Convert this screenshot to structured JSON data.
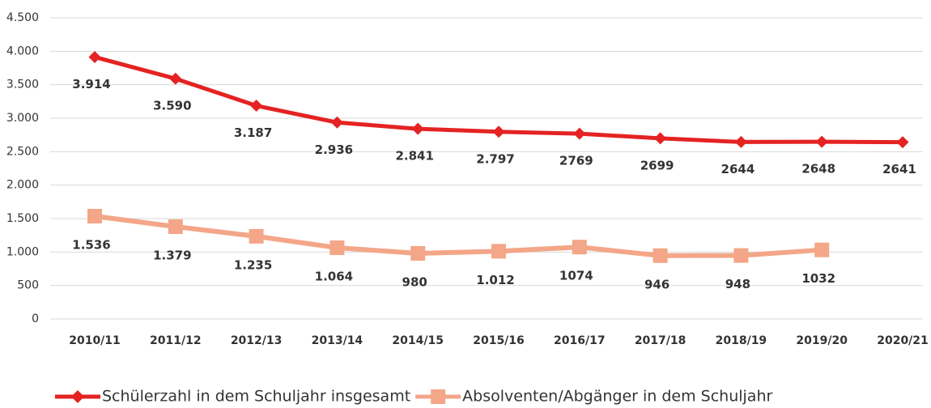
{
  "chart_data": {
    "type": "line",
    "categories": [
      "2010/11",
      "2011/12",
      "2012/13",
      "2013/14",
      "2014/15",
      "2015/16",
      "2016/17",
      "2017/18",
      "2018/19",
      "2019/20",
      "2020/21"
    ],
    "series": [
      {
        "name": "Schülerzahl in dem Schuljahr insgesamt",
        "color": "#e42322",
        "marker": "diamond",
        "values": [
          3914,
          3590,
          3187,
          2936,
          2841,
          2797,
          2769,
          2699,
          2644,
          2648,
          2641
        ],
        "value_labels": [
          "3.914",
          "3.590",
          "3.187",
          "2.936",
          "2.841",
          "2.797",
          "2769",
          "2699",
          "2644",
          "2648",
          "2641"
        ]
      },
      {
        "name": "Absolventen/Abgänger in dem Schuljahr",
        "color": "#f4a688",
        "marker": "square",
        "values": [
          1536,
          1379,
          1235,
          1064,
          980,
          1012,
          1074,
          946,
          948,
          1032,
          null
        ],
        "value_labels": [
          "1.536",
          "1.379",
          "1.235",
          "1.064",
          "980",
          "1.012",
          "1074",
          "946",
          "948",
          "1032",
          null
        ]
      }
    ],
    "ylim": [
      0,
      4500
    ],
    "yticks": [
      0,
      500,
      {
        "value": 1000,
        "label": "1.000"
      },
      {
        "value": 1500,
        "label": "1.500"
      },
      {
        "value": 2000,
        "label": "2.000"
      },
      {
        "value": 2500,
        "label": "2.500"
      },
      {
        "value": 3000,
        "label": "3.000"
      },
      {
        "value": 3500,
        "label": "3.500"
      },
      {
        "value": 4000,
        "label": "4.000"
      },
      {
        "value": 4500,
        "label": "4.500"
      }
    ],
    "grid": true,
    "legend": "bottom"
  }
}
